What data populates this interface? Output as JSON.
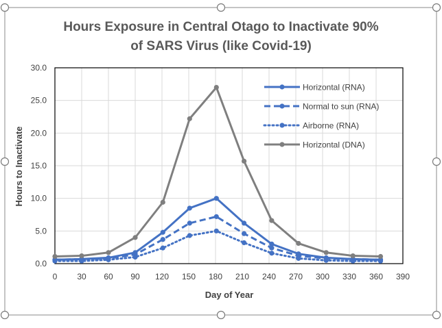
{
  "chart_data": {
    "type": "line",
    "title_line1": "Hours Exposure in Central Otago to Inactivate 90%",
    "title_line2": "of SARS Virus (like Covid-19)",
    "xlabel": "Day of Year",
    "ylabel": "Hours to Inactivate",
    "xlim": [
      0,
      390
    ],
    "ylim": [
      0,
      30
    ],
    "x_ticks": [
      "0",
      "30",
      "60",
      "90",
      "120",
      "150",
      "180",
      "210",
      "240",
      "270",
      "300",
      "330",
      "360",
      "390"
    ],
    "y_ticks": [
      "0.0",
      "5.0",
      "10.0",
      "15.0",
      "20.0",
      "25.0",
      "30.0"
    ],
    "grid": true,
    "legend_position": "top-right",
    "x": [
      0,
      30,
      60,
      90,
      121,
      151,
      181,
      212,
      243,
      273,
      304,
      334,
      365
    ],
    "series": [
      {
        "name": "Horizontal (RNA)",
        "color": "#4472C4",
        "line_style": "solid",
        "values": [
          0.6,
          0.7,
          0.9,
          1.7,
          4.8,
          8.5,
          10.0,
          6.2,
          3.0,
          1.5,
          0.9,
          0.7,
          0.6
        ]
      },
      {
        "name": "Normal to sun (RNA)",
        "color": "#4472C4",
        "line_style": "dashed",
        "values": [
          0.6,
          0.7,
          0.8,
          1.4,
          3.7,
          6.2,
          7.2,
          4.6,
          2.4,
          1.2,
          0.8,
          0.7,
          0.6
        ]
      },
      {
        "name": "Airborne (RNA)",
        "color": "#4472C4",
        "line_style": "dotted",
        "values": [
          0.4,
          0.4,
          0.6,
          1.0,
          2.4,
          4.3,
          5.0,
          3.2,
          1.6,
          0.8,
          0.5,
          0.4,
          0.4
        ]
      },
      {
        "name": "Horizontal (DNA)",
        "color": "#7F7F7F",
        "line_style": "solid",
        "values": [
          1.1,
          1.2,
          1.7,
          4.0,
          9.4,
          22.2,
          27.0,
          15.7,
          6.6,
          3.1,
          1.7,
          1.2,
          1.1
        ]
      }
    ]
  }
}
